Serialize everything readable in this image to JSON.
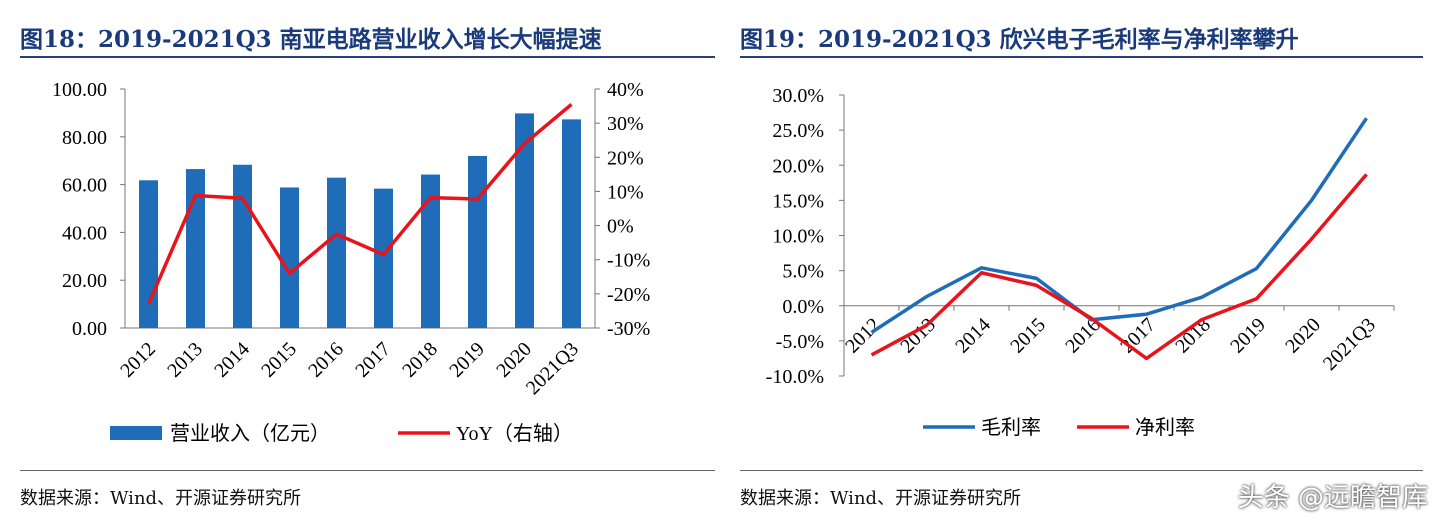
{
  "left": {
    "title": "图18：2019-2021Q3 南亚电路营业收入增长大幅提速",
    "source": "数据来源：Wind、开源证券研究所",
    "chart_data": {
      "type": "bar+line",
      "categories": [
        "2012",
        "2013",
        "2014",
        "2015",
        "2016",
        "2017",
        "2018",
        "2019",
        "2020",
        "2021Q3"
      ],
      "series": [
        {
          "name": "营业收入（亿元）",
          "type": "bar",
          "axis": "left",
          "color": "#1f6cb8",
          "values": [
            61.8,
            66.5,
            68.3,
            58.8,
            62.9,
            58.3,
            64.2,
            72.0,
            89.8,
            87.3
          ]
        },
        {
          "name": "YoY（右轴）",
          "type": "line",
          "axis": "right",
          "color": "#e8141b",
          "values": [
            -23.0,
            8.8,
            8.0,
            -14.0,
            -2.5,
            -8.5,
            8.2,
            7.8,
            24.0,
            35.5
          ]
        }
      ],
      "y_left": {
        "min": 0,
        "max": 100,
        "ticks": [
          "0.00",
          "20.00",
          "40.00",
          "60.00",
          "80.00",
          "100.00"
        ]
      },
      "y_right": {
        "min": -30,
        "max": 40,
        "ticks": [
          "-30%",
          "-20%",
          "-10%",
          "0%",
          "10%",
          "20%",
          "30%",
          "40%"
        ]
      },
      "legend_position": "bottom"
    }
  },
  "right": {
    "title": "图19：2019-2021Q3 欣兴电子毛利率与净利率攀升",
    "source": "数据来源：Wind、开源证券研究所",
    "chart_data": {
      "type": "line",
      "categories": [
        "2012",
        "2013",
        "2014",
        "2015",
        "2016",
        "2017",
        "2018",
        "2019",
        "2020",
        "2021Q3"
      ],
      "series": [
        {
          "name": "毛利率",
          "color": "#1f6cb8",
          "values": [
            -3.8,
            1.3,
            5.4,
            3.9,
            -2.0,
            -1.2,
            1.2,
            5.3,
            15.0,
            26.7
          ]
        },
        {
          "name": "净利率",
          "color": "#e8141b",
          "values": [
            -7.0,
            -2.8,
            4.7,
            2.9,
            -1.8,
            -7.5,
            -2.0,
            1.0,
            9.5,
            18.7
          ]
        }
      ],
      "y": {
        "min": -10,
        "max": 30,
        "ticks": [
          "-10.0%",
          "-5.0%",
          "0.0%",
          "5.0%",
          "10.0%",
          "15.0%",
          "20.0%",
          "25.0%",
          "30.0%"
        ]
      },
      "legend_position": "bottom"
    }
  },
  "watermark": "头条 @远瞻智库"
}
